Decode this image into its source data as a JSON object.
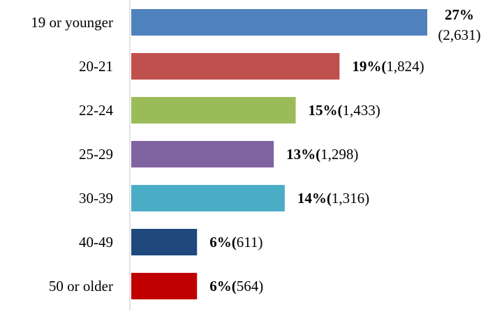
{
  "chart_data": {
    "type": "bar",
    "orientation": "horizontal",
    "title": "",
    "xlabel": "",
    "ylabel": "",
    "grid": false,
    "legend": "none",
    "categories": [
      "19 or younger",
      "20-21",
      "22-24",
      "25-29",
      "30-39",
      "40-49",
      "50 or older"
    ],
    "values": [
      27,
      19,
      15,
      13,
      14,
      6,
      6
    ],
    "counts": [
      2631,
      1824,
      1433,
      1298,
      1316,
      611,
      564
    ],
    "percent_labels": [
      "27%",
      "19%",
      "15%",
      "13%",
      "14%",
      "6%",
      "6%"
    ],
    "count_labels": [
      "(2,631)",
      "1,824)",
      "1,433)",
      "1,298)",
      "1,316)",
      "611)",
      "564)"
    ],
    "label_parens": [
      "",
      "(",
      "(",
      "(",
      "(",
      "(",
      "("
    ],
    "colors": [
      "#4F81BD",
      "#C0504D",
      "#9BBB59",
      "#8064A2",
      "#4BACC6",
      "#1F497D",
      "#C00000"
    ],
    "xlim": [
      0,
      27
    ]
  }
}
